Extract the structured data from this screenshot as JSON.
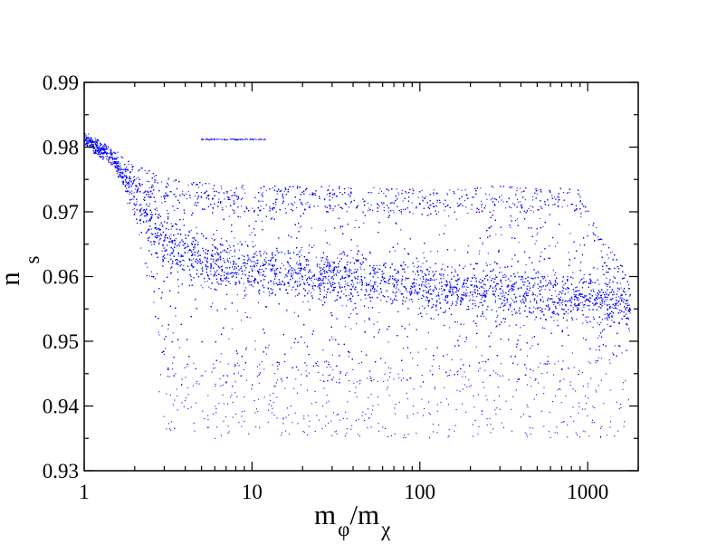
{
  "chart_data": {
    "type": "scatter",
    "title": "",
    "xlabel": {
      "main1": "m",
      "sub1": "φ",
      "slash": "/",
      "main2": "m",
      "sub2": "χ"
    },
    "ylabel": {
      "main": "n",
      "sub": "s"
    },
    "xscale": "log",
    "xlim": [
      1,
      2000
    ],
    "ylim": [
      0.93,
      0.99
    ],
    "x_ticks": [
      1,
      10,
      100,
      1000
    ],
    "x_tick_labels": [
      "1",
      "10",
      "100",
      "1000"
    ],
    "y_ticks": [
      0.93,
      0.94,
      0.95,
      0.96,
      0.97,
      0.98,
      0.99
    ],
    "y_tick_labels": [
      "0.93",
      "0.94",
      "0.95",
      "0.96",
      "0.97",
      "0.98",
      "0.99"
    ],
    "grid": false,
    "legend": "none",
    "point_color": "#0000ff",
    "series": [
      {
        "values": [
          {
            "x": 1.0,
            "y": 0.9815
          },
          {
            "x": 1.1,
            "y": 0.9812
          },
          {
            "x": 1.2,
            "y": 0.9806
          },
          {
            "x": 1.3,
            "y": 0.9795
          },
          {
            "x": 1.5,
            "y": 0.9775
          },
          {
            "x": 1.7,
            "y": 0.9745
          },
          {
            "x": 2.0,
            "y": 0.97
          },
          {
            "x": 2.3,
            "y": 0.962
          },
          {
            "x": 2.6,
            "y": 0.956
          },
          {
            "x": 2.8,
            "y": 0.951
          },
          {
            "x": 3.0,
            "y": 0.948
          },
          {
            "x": 3.5,
            "y": 0.945
          },
          {
            "x": 5,
            "y": 0.962
          },
          {
            "x": 10,
            "y": 0.961
          },
          {
            "x": 20,
            "y": 0.96
          },
          {
            "x": 50,
            "y": 0.959
          },
          {
            "x": 100,
            "y": 0.958
          },
          {
            "x": 200,
            "y": 0.9575
          },
          {
            "x": 500,
            "y": 0.957
          },
          {
            "x": 1000,
            "y": 0.9565
          },
          {
            "x": 1500,
            "y": 0.955
          },
          {
            "x": 1800,
            "y": 0.95
          },
          {
            "x": 5,
            "y": 0.9812
          },
          {
            "x": 12,
            "y": 0.9812
          },
          {
            "x": 900,
            "y": 0.9725
          },
          {
            "x": 1500,
            "y": 0.9615
          },
          {
            "x": 6,
            "y": 0.935
          }
        ]
      }
    ],
    "envelope": {
      "upper": [
        [
          1,
          0.9825
        ],
        [
          1.5,
          0.98
        ],
        [
          2,
          0.9772
        ],
        [
          3,
          0.9755
        ],
        [
          5,
          0.9745
        ],
        [
          10,
          0.974
        ],
        [
          30,
          0.974
        ],
        [
          100,
          0.9735
        ],
        [
          300,
          0.974
        ],
        [
          900,
          0.9735
        ],
        [
          1200,
          0.966
        ],
        [
          1600,
          0.962
        ],
        [
          1800,
          0.958
        ]
      ],
      "lower": [
        [
          1,
          0.98
        ],
        [
          1.5,
          0.977
        ],
        [
          2,
          0.968
        ],
        [
          2.5,
          0.957
        ],
        [
          3,
          0.946
        ],
        [
          3.5,
          0.944
        ],
        [
          6,
          0.943
        ],
        [
          20,
          0.943
        ],
        [
          100,
          0.944
        ],
        [
          500,
          0.944
        ],
        [
          1000,
          0.945
        ],
        [
          1500,
          0.947
        ],
        [
          1800,
          0.948
        ]
      ],
      "ridge": [
        [
          1,
          0.9815
        ],
        [
          1.5,
          0.978
        ],
        [
          2,
          0.9725
        ],
        [
          3,
          0.965
        ],
        [
          5,
          0.9625
        ],
        [
          10,
          0.961
        ],
        [
          30,
          0.96
        ],
        [
          100,
          0.9585
        ],
        [
          300,
          0.9575
        ],
        [
          1000,
          0.9565
        ],
        [
          1800,
          0.9555
        ]
      ]
    }
  }
}
